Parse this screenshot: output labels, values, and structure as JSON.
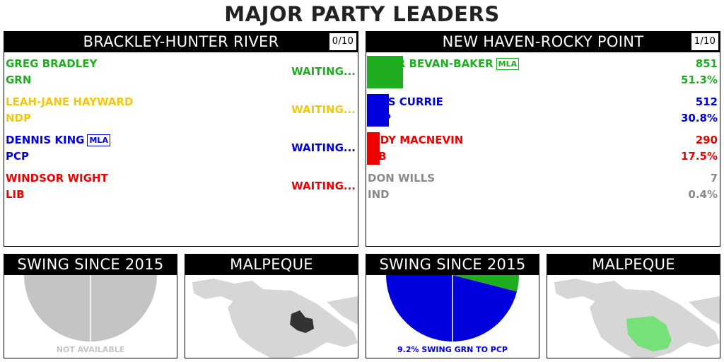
{
  "title": "MAJOR PARTY LEADERS",
  "colors": {
    "GRN": "#1fae1f",
    "NDP": "#f2c80f",
    "PCP": "#0000dd",
    "LIB": "#ee0000",
    "IND": "#8a8a8a",
    "unavailable": "#c4c4c4",
    "map_land": "#d6d6d6",
    "map_riding_dark": "#333333",
    "map_riding_green": "#78e078"
  },
  "left": {
    "district": "BRACKLEY-HUNTER RIVER",
    "polls": "0/10",
    "candidates": [
      {
        "name": "GREG BRADLEY",
        "party": "GRN",
        "status": "WAITING...",
        "mla": false
      },
      {
        "name": "LEAH-JANE HAYWARD",
        "party": "NDP",
        "status": "WAITING...",
        "mla": false
      },
      {
        "name": "DENNIS KING",
        "party": "PCP",
        "status": "WAITING...",
        "mla": true,
        "mla_label": "MLA"
      },
      {
        "name": "WINDSOR WIGHT",
        "party": "LIB",
        "status": "WAITING...",
        "mla": false
      }
    ],
    "swing": {
      "title": "SWING SINCE 2015",
      "caption": "NOT AVAILABLE",
      "slices": []
    },
    "map": {
      "title": "MALPEQUE",
      "highlight": "dark"
    }
  },
  "right": {
    "district": "NEW HAVEN-ROCKY POINT",
    "polls": "1/10",
    "candidates": [
      {
        "name": "PETER BEVAN-BAKER",
        "party": "GRN",
        "votes": "851",
        "pct": "51.3%",
        "share": 51.3,
        "mla": true,
        "mla_label": "MLA"
      },
      {
        "name": "KRIS CURRIE",
        "party": "PCP",
        "votes": "512",
        "pct": "30.8%",
        "share": 30.8,
        "mla": false
      },
      {
        "name": "JUDY MACNEVIN",
        "party": "LIB",
        "votes": "290",
        "pct": "17.5%",
        "share": 17.5,
        "mla": false
      },
      {
        "name": "DON WILLS",
        "party": "IND",
        "votes": "7",
        "pct": "0.4%",
        "share": 0.4,
        "mla": false
      }
    ],
    "swing": {
      "title": "SWING SINCE 2015",
      "caption": "9.2% SWING GRN TO PCP",
      "slices": [
        {
          "party": "PCP",
          "value": 92.0
        },
        {
          "party": "GRN",
          "value": 8.0
        }
      ]
    },
    "map": {
      "title": "MALPEQUE",
      "highlight": "green"
    }
  }
}
